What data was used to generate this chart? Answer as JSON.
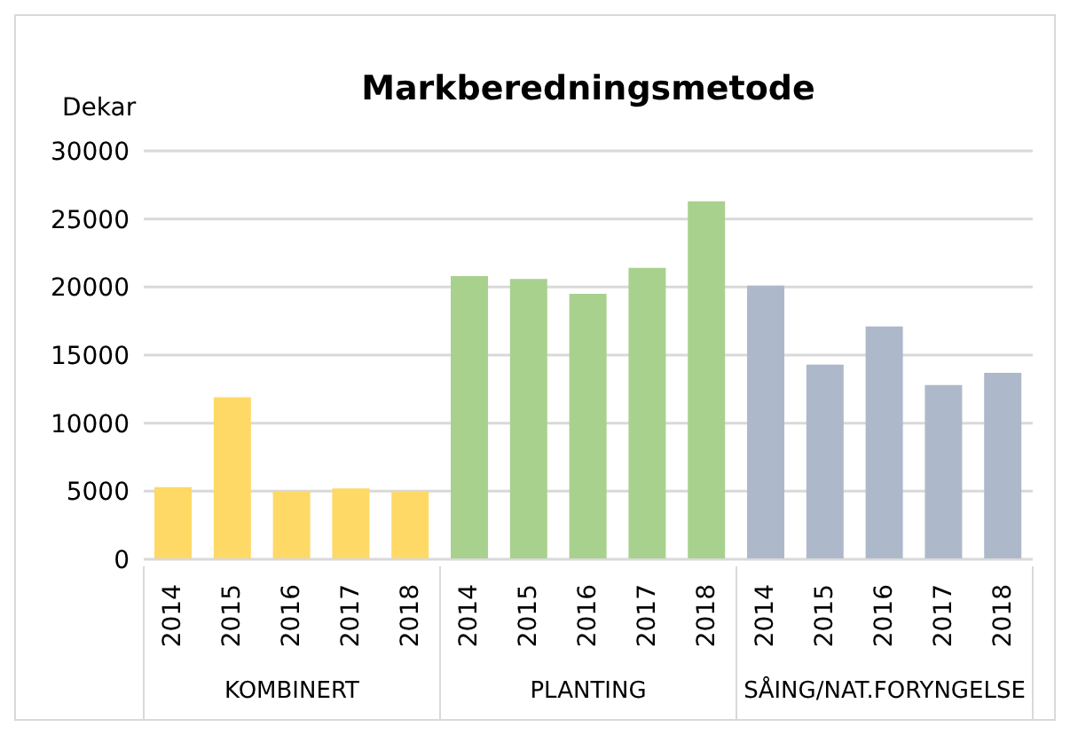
{
  "chart_data": {
    "type": "bar",
    "title": "Markberedningsmetode",
    "ylabel": "Dekar",
    "categories": [
      "2014",
      "2015",
      "2016",
      "2017",
      "2018",
      "2014",
      "2015",
      "2016",
      "2017",
      "2018",
      "2014",
      "2015",
      "2016",
      "2017",
      "2018"
    ],
    "series": [
      {
        "color": "#ffd966",
        "values": [
          5300,
          11900,
          5000,
          5200,
          5000,
          null,
          null,
          null,
          null,
          null,
          null,
          null,
          null,
          null,
          null
        ]
      },
      {
        "color": "#a9d18e",
        "values": [
          null,
          null,
          null,
          null,
          null,
          20800,
          20600,
          19500,
          21400,
          26300,
          null,
          null,
          null,
          null,
          null
        ]
      },
      {
        "color": "#adb9ca",
        "values": [
          null,
          null,
          null,
          null,
          null,
          null,
          null,
          null,
          null,
          null,
          20100,
          14300,
          17100,
          12800,
          13700
        ]
      }
    ],
    "annotations": [
      "KOMBINERT",
      "PLANTING",
      "SÅING/NAT.FORYNGELSE"
    ],
    "stacked": true,
    "ylim": [
      0,
      30000
    ],
    "yticks": [
      0,
      5000,
      10000,
      15000,
      20000,
      25000,
      30000
    ],
    "grid": "y"
  }
}
